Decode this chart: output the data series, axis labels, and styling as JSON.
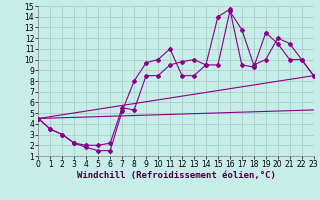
{
  "xlabel": "Windchill (Refroidissement éolien,°C)",
  "xlim": [
    0,
    23
  ],
  "ylim": [
    1,
    15
  ],
  "xticks": [
    0,
    1,
    2,
    3,
    4,
    5,
    6,
    7,
    8,
    9,
    10,
    11,
    12,
    13,
    14,
    15,
    16,
    17,
    18,
    19,
    20,
    21,
    22,
    23
  ],
  "yticks": [
    1,
    2,
    3,
    4,
    5,
    6,
    7,
    8,
    9,
    10,
    11,
    12,
    13,
    14,
    15
  ],
  "bg_color": "#c8ece8",
  "grid_color": "#a0ccc4",
  "line_color": "#880088",
  "line1_x": [
    0,
    1,
    2,
    3,
    4,
    5,
    6,
    7,
    8,
    9,
    10,
    11,
    12,
    13,
    14,
    15,
    16,
    17,
    18,
    19,
    20,
    21,
    22,
    23
  ],
  "line1_y": [
    4.5,
    3.5,
    3.0,
    2.2,
    1.8,
    1.5,
    1.5,
    5.2,
    8.0,
    9.7,
    10.0,
    11.0,
    8.5,
    8.5,
    9.5,
    14.0,
    14.7,
    9.5,
    9.3,
    12.5,
    11.5,
    10.0,
    10.0,
    8.5
  ],
  "line2_x": [
    0,
    1,
    2,
    3,
    4,
    5,
    6,
    7,
    8,
    9,
    10,
    11,
    12,
    13,
    14,
    15,
    16,
    17,
    18,
    19,
    20,
    21,
    22,
    23
  ],
  "line2_y": [
    4.5,
    3.5,
    3.0,
    2.2,
    2.0,
    2.0,
    2.2,
    5.5,
    5.3,
    8.5,
    8.5,
    9.5,
    9.8,
    10.0,
    9.5,
    9.5,
    14.5,
    12.8,
    9.5,
    10.0,
    12.0,
    11.5,
    10.0,
    8.5
  ],
  "line3_x": [
    0,
    23
  ],
  "line3_y": [
    4.5,
    8.5
  ],
  "line4_x": [
    0,
    23
  ],
  "line4_y": [
    4.5,
    5.3
  ],
  "font_size_label": 6.5,
  "font_size_tick": 5.5,
  "marker": "D",
  "marker_size": 2.0,
  "linewidth": 0.8
}
